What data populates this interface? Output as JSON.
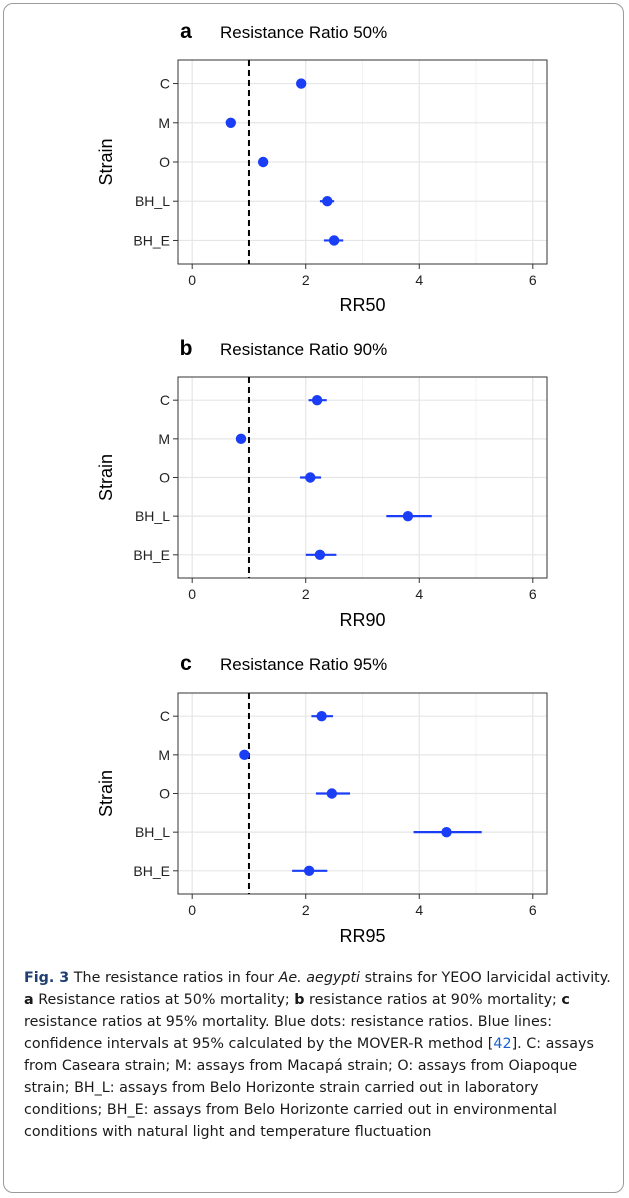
{
  "colors": {
    "point": "#1a3ef5",
    "reference_line": "#000000",
    "grid": "#e6e6e6"
  },
  "caption": {
    "figure_label": "Fig. 3",
    "t1": " The resistance ratios in four ",
    "species": "Ae. aegypti",
    "t2": " strains for YEOO larvicidal activity. ",
    "a": "a",
    "ta": " Resistance ratios at 50% mortality; ",
    "b": "b",
    "tb": " resistance ratios at 90% mortality; ",
    "c": "c",
    "tc": " resistance ratios at 95% mortality. Blue dots: resistance ratios. Blue lines: confidence intervals at 95% calculated by the MOVER-R method [",
    "ref": "42",
    "td": "]. C: assays from Caseara strain; M: assays from Macapá strain; O: assays from Oiapoque strain; BH_L: assays from Belo Horizonte strain carried out in laboratory conditions; BH_E: assays from Belo Horizonte carried out in environmental conditions with natural light and temperature fluctuation"
  },
  "chart_data": [
    {
      "type": "scatter",
      "panel": "a",
      "title": "Resistance Ratio 50%",
      "xlabel": "RR50",
      "ylabel": "Strain",
      "categories": [
        "C",
        "M",
        "O",
        "BH_L",
        "BH_E"
      ],
      "xticks": [
        "0",
        "2",
        "4",
        "6"
      ],
      "xlim": [
        -0.25,
        6.25
      ],
      "reference_x": 1,
      "grid": true,
      "values": [
        1.92,
        0.68,
        1.25,
        2.38,
        2.5
      ],
      "ci_low": [
        1.88,
        0.64,
        1.21,
        2.25,
        2.32
      ],
      "ci_high": [
        1.96,
        0.72,
        1.29,
        2.5,
        2.66
      ]
    },
    {
      "type": "scatter",
      "panel": "b",
      "title": "Resistance Ratio 90%",
      "xlabel": "RR90",
      "ylabel": "Strain",
      "categories": [
        "C",
        "M",
        "O",
        "BH_L",
        "BH_E"
      ],
      "xticks": [
        "0",
        "2",
        "4",
        "6"
      ],
      "xlim": [
        -0.25,
        6.25
      ],
      "reference_x": 1,
      "grid": true,
      "values": [
        2.2,
        0.86,
        2.08,
        3.8,
        2.25
      ],
      "ci_low": [
        2.05,
        0.82,
        1.9,
        3.42,
        2.0
      ],
      "ci_high": [
        2.37,
        0.9,
        2.27,
        4.22,
        2.54
      ]
    },
    {
      "type": "scatter",
      "panel": "c",
      "title": "Resistance Ratio 95%",
      "xlabel": "RR95",
      "ylabel": "Strain",
      "categories": [
        "C",
        "M",
        "O",
        "BH_L",
        "BH_E"
      ],
      "xticks": [
        "0",
        "2",
        "4",
        "6"
      ],
      "xlim": [
        -0.25,
        6.25
      ],
      "reference_x": 1,
      "grid": true,
      "values": [
        2.28,
        0.92,
        2.46,
        4.48,
        2.06
      ],
      "ci_low": [
        2.1,
        0.88,
        2.18,
        3.9,
        1.76
      ],
      "ci_high": [
        2.48,
        0.96,
        2.78,
        5.1,
        2.38
      ]
    }
  ]
}
